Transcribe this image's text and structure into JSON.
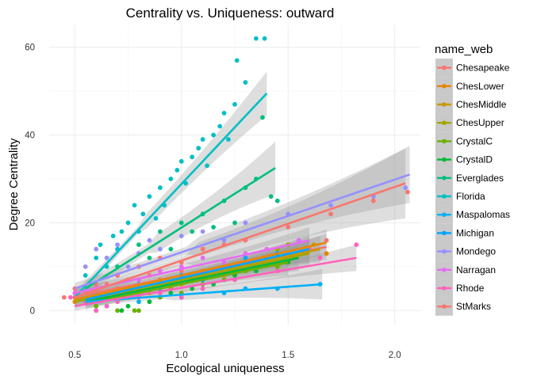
{
  "chart_data": {
    "type": "scatter",
    "title": "Centrality vs. Uniqueness: outward",
    "xlabel": "Ecological uniqueness",
    "ylabel": "Degree Centrality",
    "xlim": [
      0.38,
      2.12
    ],
    "ylim": [
      -3.2,
      65
    ],
    "x_ticks": [
      0.5,
      1.0,
      1.5,
      2.0
    ],
    "x_tick_labels": [
      "0.5",
      "1.0",
      "1.5",
      "2.0"
    ],
    "y_ticks": [
      0,
      20,
      40,
      60
    ],
    "y_tick_labels": [
      "0",
      "20",
      "40",
      "60"
    ],
    "grid": true,
    "legend_title": "name_web",
    "legend_position": "right",
    "series": [
      {
        "name": "Chesapeake",
        "color": "#F8766D",
        "points": [
          [
            0.5,
            3
          ],
          [
            0.55,
            4
          ],
          [
            0.6,
            5
          ],
          [
            0.65,
            6
          ],
          [
            0.7,
            4
          ],
          [
            0.75,
            7
          ],
          [
            0.8,
            5
          ],
          [
            0.85,
            8
          ],
          [
            0.9,
            6
          ],
          [
            1.0,
            9
          ],
          [
            1.1,
            8
          ],
          [
            1.2,
            10
          ],
          [
            1.3,
            12
          ],
          [
            1.45,
            11
          ],
          [
            1.6,
            14
          ],
          [
            1.68,
            16
          ]
        ],
        "fit": [
          [
            0.5,
            3.2
          ],
          [
            1.68,
            14.5
          ]
        ],
        "band": [
          3.0,
          3.0
        ]
      },
      {
        "name": "ChesLower",
        "color": "#E58700",
        "points": [
          [
            0.5,
            2
          ],
          [
            0.6,
            3
          ],
          [
            0.7,
            5
          ],
          [
            0.8,
            4
          ],
          [
            0.9,
            7
          ],
          [
            1.0,
            6
          ],
          [
            1.1,
            9
          ],
          [
            1.2,
            8
          ],
          [
            1.3,
            11
          ],
          [
            1.4,
            12
          ],
          [
            1.5,
            11
          ],
          [
            1.68,
            13
          ]
        ],
        "fit": [
          [
            0.5,
            2.5
          ],
          [
            1.68,
            15.5
          ]
        ],
        "band": [
          2.5,
          3.0
        ]
      },
      {
        "name": "ChesMiddle",
        "color": "#C99800",
        "points": [
          [
            0.55,
            2
          ],
          [
            0.65,
            4
          ],
          [
            0.75,
            3
          ],
          [
            0.85,
            6
          ],
          [
            0.95,
            5
          ],
          [
            1.05,
            8
          ],
          [
            1.15,
            9
          ],
          [
            1.25,
            10
          ],
          [
            1.35,
            11
          ],
          [
            1.45,
            10
          ],
          [
            1.55,
            13
          ],
          [
            1.62,
            15
          ]
        ],
        "fit": [
          [
            0.5,
            2.2
          ],
          [
            1.65,
            14
          ]
        ],
        "band": [
          2.5,
          3.0
        ]
      },
      {
        "name": "ChesUpper",
        "color": "#A3A500",
        "points": [
          [
            0.55,
            2
          ],
          [
            0.65,
            3
          ],
          [
            0.75,
            5
          ],
          [
            0.85,
            4
          ],
          [
            0.95,
            6
          ],
          [
            1.05,
            7
          ],
          [
            1.15,
            8
          ],
          [
            1.25,
            9
          ],
          [
            1.35,
            11
          ],
          [
            1.45,
            14
          ],
          [
            1.5,
            15
          ]
        ],
        "fit": [
          [
            0.5,
            2
          ],
          [
            1.6,
            13
          ]
        ],
        "band": [
          2.5,
          3.0
        ]
      },
      {
        "name": "CrystalC",
        "color": "#6BB100",
        "points": [
          [
            0.6,
            1
          ],
          [
            0.7,
            0
          ],
          [
            0.78,
            0
          ],
          [
            0.8,
            0
          ],
          [
            0.85,
            2
          ],
          [
            0.9,
            3
          ],
          [
            1.0,
            4
          ],
          [
            1.1,
            6
          ],
          [
            1.2,
            7
          ],
          [
            1.3,
            9
          ],
          [
            1.45,
            10
          ]
        ],
        "fit": [
          [
            0.55,
            1.5
          ],
          [
            1.5,
            11
          ]
        ],
        "band": [
          2.5,
          3.0
        ]
      },
      {
        "name": "CrystalD",
        "color": "#00BA38",
        "points": [
          [
            0.55,
            2
          ],
          [
            0.65,
            3
          ],
          [
            0.72,
            0
          ],
          [
            0.75,
            1
          ],
          [
            0.85,
            2
          ],
          [
            0.95,
            4
          ],
          [
            1.05,
            5
          ],
          [
            1.15,
            6
          ],
          [
            1.25,
            8
          ],
          [
            1.35,
            9
          ],
          [
            1.5,
            11
          ]
        ],
        "fit": [
          [
            0.55,
            2
          ],
          [
            1.55,
            12
          ]
        ],
        "band": [
          2.5,
          3.0
        ]
      },
      {
        "name": "Everglades",
        "color": "#00BF7D",
        "points": [
          [
            0.6,
            6
          ],
          [
            0.7,
            10
          ],
          [
            0.8,
            15
          ],
          [
            0.85,
            12
          ],
          [
            0.9,
            18
          ],
          [
            0.95,
            14
          ],
          [
            1.0,
            20
          ],
          [
            1.05,
            18
          ],
          [
            1.1,
            22
          ],
          [
            1.15,
            19
          ],
          [
            1.2,
            25
          ],
          [
            1.25,
            20
          ],
          [
            1.3,
            28
          ],
          [
            1.35,
            30
          ],
          [
            1.38,
            44
          ],
          [
            1.42,
            26
          ],
          [
            1.45,
            25
          ]
        ],
        "fit": [
          [
            0.55,
            5
          ],
          [
            1.44,
            32.5
          ]
        ],
        "band": [
          3.0,
          6.0
        ]
      },
      {
        "name": "Florida",
        "color": "#00BFC4",
        "points": [
          [
            0.55,
            8
          ],
          [
            0.6,
            12
          ],
          [
            0.62,
            15
          ],
          [
            0.65,
            10
          ],
          [
            0.68,
            17
          ],
          [
            0.7,
            14
          ],
          [
            0.72,
            18
          ],
          [
            0.75,
            20
          ],
          [
            0.78,
            24
          ],
          [
            0.8,
            18
          ],
          [
            0.82,
            22
          ],
          [
            0.85,
            26
          ],
          [
            0.88,
            21
          ],
          [
            0.9,
            28
          ],
          [
            0.92,
            24
          ],
          [
            0.95,
            30
          ],
          [
            0.98,
            32
          ],
          [
            1.0,
            34
          ],
          [
            1.02,
            29
          ],
          [
            1.05,
            35
          ],
          [
            1.08,
            37
          ],
          [
            1.1,
            39
          ],
          [
            1.12,
            33
          ],
          [
            1.15,
            40
          ],
          [
            1.18,
            42
          ],
          [
            1.2,
            45
          ],
          [
            1.22,
            39
          ],
          [
            1.25,
            47
          ],
          [
            1.26,
            57
          ],
          [
            1.3,
            52
          ],
          [
            1.35,
            62
          ],
          [
            1.39,
            62
          ]
        ],
        "fit": [
          [
            0.5,
            3
          ],
          [
            1.4,
            49.5
          ]
        ],
        "band": [
          2.5,
          5.0
        ]
      },
      {
        "name": "Maspalomas",
        "color": "#00B0F6",
        "points": [
          [
            0.55,
            2
          ],
          [
            0.6,
            0
          ],
          [
            0.65,
            1
          ],
          [
            0.7,
            3
          ],
          [
            0.8,
            2
          ],
          [
            0.9,
            4
          ],
          [
            1.0,
            3
          ],
          [
            1.1,
            5
          ],
          [
            1.2,
            4
          ],
          [
            1.3,
            5
          ],
          [
            1.45,
            5
          ],
          [
            1.65,
            6
          ]
        ],
        "fit": [
          [
            0.55,
            2
          ],
          [
            1.66,
            6
          ]
        ],
        "band": [
          2.0,
          3.5
        ]
      },
      {
        "name": "Michigan",
        "color": "#00A5FF",
        "points": [
          [
            0.55,
            2
          ],
          [
            0.6,
            4
          ],
          [
            0.7,
            3
          ],
          [
            0.8,
            6
          ],
          [
            0.9,
            5
          ],
          [
            1.0,
            8
          ],
          [
            1.1,
            7
          ],
          [
            1.2,
            10
          ],
          [
            1.3,
            12
          ],
          [
            1.45,
            13
          ],
          [
            1.55,
            16
          ]
        ],
        "fit": [
          [
            0.55,
            2.5
          ],
          [
            1.6,
            14
          ]
        ],
        "band": [
          2.5,
          3.0
        ]
      },
      {
        "name": "Mondego",
        "color": "#9590FF",
        "points": [
          [
            0.55,
            10
          ],
          [
            0.6,
            14
          ],
          [
            0.65,
            12
          ],
          [
            0.7,
            15
          ],
          [
            0.75,
            10
          ],
          [
            0.8,
            13
          ],
          [
            0.85,
            16
          ],
          [
            0.9,
            14
          ],
          [
            1.0,
            17
          ],
          [
            1.1,
            18
          ],
          [
            1.2,
            16
          ],
          [
            1.3,
            20
          ],
          [
            1.5,
            22
          ],
          [
            1.7,
            24
          ],
          [
            1.9,
            26
          ],
          [
            2.05,
            28
          ]
        ],
        "fit": [
          [
            0.5,
            5
          ],
          [
            2.07,
            31
          ]
        ],
        "band": [
          2.5,
          6.5
        ]
      },
      {
        "name": "Narragan",
        "color": "#E76BF3",
        "points": [
          [
            0.5,
            4
          ],
          [
            0.6,
            6
          ],
          [
            0.7,
            8
          ],
          [
            0.8,
            7
          ],
          [
            0.9,
            9
          ],
          [
            1.0,
            10
          ],
          [
            1.1,
            12
          ],
          [
            1.2,
            11
          ],
          [
            1.3,
            13
          ],
          [
            1.4,
            14
          ],
          [
            1.55,
            16
          ]
        ],
        "fit": [
          [
            0.5,
            4
          ],
          [
            1.6,
            16
          ]
        ],
        "band": [
          2.5,
          3.0
        ]
      },
      {
        "name": "Rhode",
        "color": "#FF62BC",
        "points": [
          [
            0.48,
            3
          ],
          [
            0.55,
            2
          ],
          [
            0.6,
            0
          ],
          [
            0.65,
            1
          ],
          [
            0.7,
            2
          ],
          [
            0.8,
            3
          ],
          [
            0.9,
            4
          ],
          [
            1.0,
            3
          ],
          [
            1.1,
            5
          ],
          [
            1.25,
            7
          ],
          [
            1.45,
            9
          ],
          [
            1.65,
            12
          ],
          [
            1.82,
            15
          ]
        ],
        "fit": [
          [
            0.5,
            1
          ],
          [
            1.82,
            12
          ]
        ],
        "band": [
          2.0,
          3.0
        ]
      },
      {
        "name": "StMarks",
        "color": "#F8766D",
        "points": [
          [
            0.45,
            3
          ],
          [
            0.5,
            5
          ],
          [
            0.6,
            6
          ],
          [
            0.7,
            8
          ],
          [
            0.8,
            10
          ],
          [
            0.9,
            12
          ],
          [
            1.0,
            11
          ],
          [
            1.1,
            14
          ],
          [
            1.2,
            15
          ],
          [
            1.3,
            16
          ],
          [
            1.5,
            19
          ],
          [
            1.7,
            22
          ],
          [
            1.9,
            25
          ],
          [
            2.06,
            27
          ]
        ],
        "fit": [
          [
            0.5,
            3
          ],
          [
            2.05,
            29
          ]
        ],
        "band": [
          2.5,
          8.0
        ]
      }
    ]
  }
}
